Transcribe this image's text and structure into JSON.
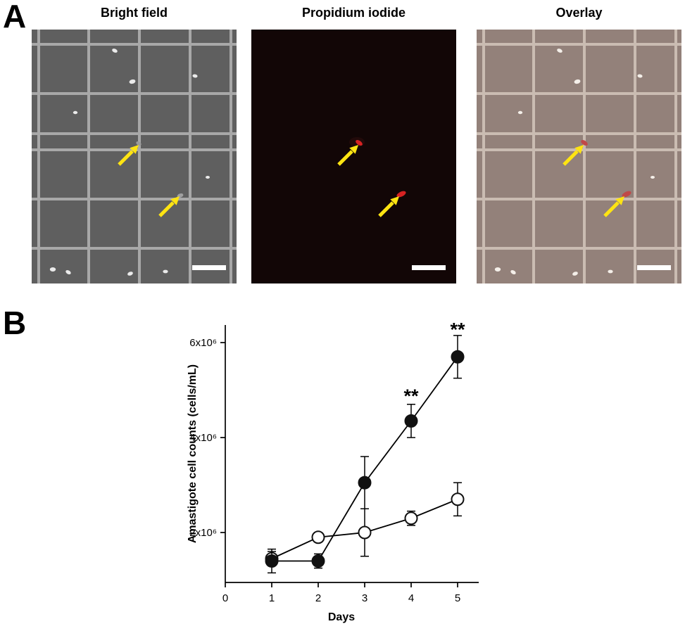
{
  "figure": {
    "panel_a": {
      "label": "A",
      "images": [
        {
          "title": "Bright field"
        },
        {
          "title": "Propidium iodide"
        },
        {
          "title": "Overlay"
        }
      ]
    },
    "panel_b": {
      "label": "B"
    }
  },
  "chart_data": {
    "type": "line",
    "title": "",
    "xlabel": "Days",
    "ylabel": "Amastigote cell counts (cells/mL)",
    "x": [
      1,
      2,
      3,
      4,
      5
    ],
    "xticks": [
      0,
      1,
      2,
      3,
      4,
      5
    ],
    "yticks": [
      {
        "value": 2,
        "label": "2x10⁶"
      },
      {
        "value": 4,
        "label": "4x10⁶"
      },
      {
        "value": 6,
        "label": "6x10⁶"
      }
    ],
    "xlim": [
      0,
      5.4
    ],
    "ylim": [
      0.95,
      6.4
    ],
    "grid": false,
    "legend": "none",
    "series": [
      {
        "name": "open circles",
        "marker": "open",
        "values": [
          1.45,
          1.9,
          2.0,
          2.3,
          2.7
        ],
        "errors": [
          0.15,
          0.1,
          0.5,
          0.15,
          0.35
        ]
      },
      {
        "name": "filled circles",
        "marker": "filled",
        "values": [
          1.4,
          1.4,
          3.05,
          4.35,
          5.7
        ],
        "errors": [
          0.25,
          0.15,
          0.55,
          0.35,
          0.45
        ]
      }
    ],
    "annotations": [
      {
        "text": "**",
        "x": 4,
        "y": 4.95
      },
      {
        "text": "**",
        "x": 5,
        "y": 6.35
      }
    ],
    "colors": {
      "line": "#000000",
      "marker_filled": "#111111",
      "marker_open_fill": "#ffffff"
    }
  }
}
